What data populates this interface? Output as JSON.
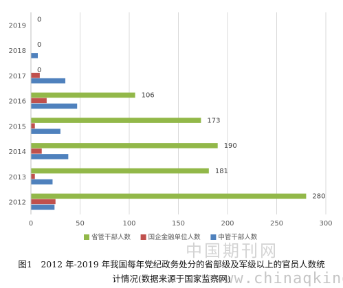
{
  "chart_data": {
    "type": "bar",
    "orientation": "horizontal",
    "categories": [
      "2012",
      "2013",
      "2014",
      "2015",
      "2016",
      "2017",
      "2018",
      "2019"
    ],
    "series": [
      {
        "name": "省管干部人数",
        "color": "#92b849",
        "values": [
          280,
          181,
          190,
          173,
          106,
          0,
          0,
          0
        ]
      },
      {
        "name": "国企金融单位人数",
        "color": "#c0504d",
        "values": [
          25,
          4,
          11,
          4,
          16,
          9,
          0,
          0
        ]
      },
      {
        "name": "中管干部人数",
        "color": "#4f81bd",
        "values": [
          24,
          22,
          38,
          30,
          47,
          35,
          7,
          0
        ]
      }
    ],
    "data_labels_series": "省管干部人数",
    "xlim": [
      0,
      300
    ],
    "xticks": [
      0,
      50,
      100,
      150,
      200,
      250,
      300
    ],
    "grid": "vertical",
    "legend_position": "bottom",
    "title": "",
    "xlabel": "",
    "ylabel": ""
  },
  "caption": {
    "line1": "图1　2012 年-2019 年我国每年党纪政务处分的省部级及军级以上的官员人数统",
    "line2": "计情况(数据来源于国家监察网)"
  },
  "watermark": {
    "cn": "中国期刊网",
    "en": "www.chinaqking.com"
  }
}
